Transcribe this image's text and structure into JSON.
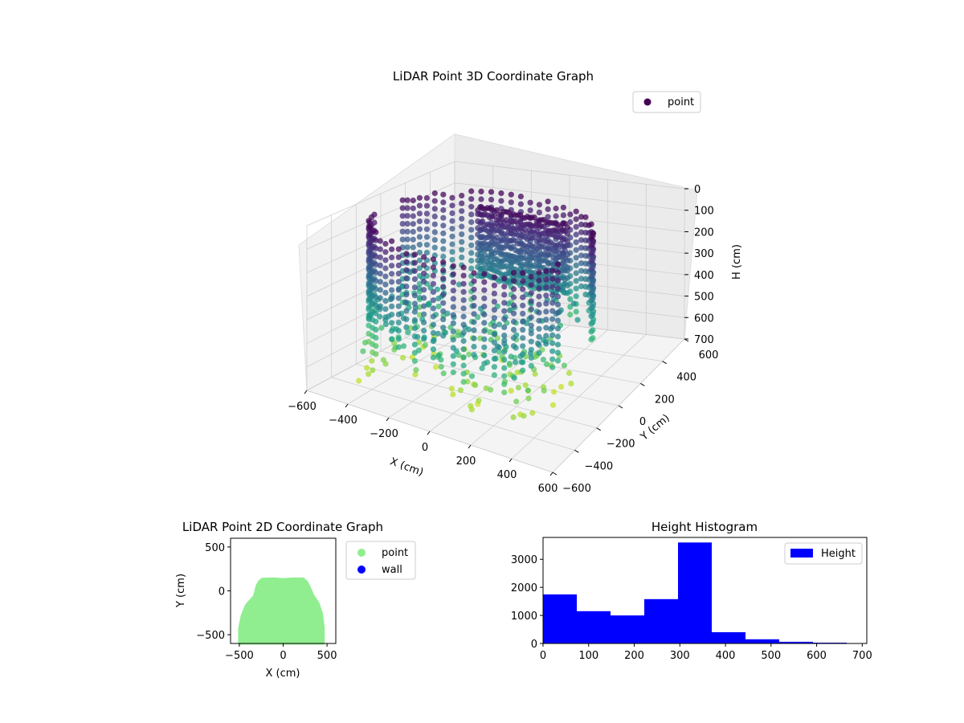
{
  "chart_data": [
    {
      "type": "scatter3d",
      "title": "LiDAR Point 3D Coordinate Graph",
      "xlabel": "X (cm)",
      "ylabel": "Y (cm)",
      "zlabel": "H (cm)",
      "xlim": [
        -600,
        600
      ],
      "ylim": [
        -600,
        600
      ],
      "zlim": [
        0,
        700
      ],
      "z_axis_inverted": true,
      "xticks": [
        -600,
        -400,
        -200,
        0,
        200,
        400,
        600
      ],
      "yticks": [
        -600,
        -400,
        -200,
        0,
        200,
        400,
        600
      ],
      "zticks": [
        0,
        100,
        200,
        300,
        400,
        500,
        600,
        700
      ],
      "xtick_labels": [
        "−600",
        "−400",
        "−200",
        "0",
        "200",
        "400",
        "600"
      ],
      "ytick_labels": [
        "−600",
        "−400",
        "−200",
        "0",
        "200",
        "400",
        "600"
      ],
      "ztick_labels": [
        "0",
        "100",
        "200",
        "300",
        "400",
        "500",
        "600",
        "700"
      ],
      "colormap": "viridis",
      "grid": true,
      "legend": {
        "placement": "top-right",
        "entries": [
          {
            "label": "point",
            "color": "#440154"
          }
        ]
      },
      "points_description_values": {
        "wall_radius_x": [
          -500,
          450
        ],
        "wall_y_range": [
          -550,
          150
        ],
        "height_range": [
          0,
          680
        ]
      }
    },
    {
      "type": "scatter",
      "title": "LiDAR Point 2D Coordinate Graph",
      "xlabel": "X (cm)",
      "ylabel": "Y (cm)",
      "xlim": [
        -600,
        600
      ],
      "ylim": [
        -600,
        600
      ],
      "xticks": [
        -500,
        0,
        500
      ],
      "yticks": [
        -500,
        0,
        500
      ],
      "xtick_labels": [
        "−500",
        "0",
        "500"
      ],
      "ytick_labels": [
        "−500",
        "0",
        "500"
      ],
      "legend": {
        "placement": "outside-right",
        "entries": [
          {
            "label": "point",
            "color": "#90ee90"
          },
          {
            "label": "wall",
            "color": "#0000ff"
          }
        ]
      },
      "series": [
        {
          "name": "point",
          "color": "#90ee90",
          "outline": [
            [
              -500,
              -600
            ],
            [
              -500,
              -430
            ],
            [
              -470,
              -280
            ],
            [
              -420,
              -160
            ],
            [
              -330,
              -60
            ],
            [
              -300,
              60
            ],
            [
              -270,
              110
            ],
            [
              -240,
              135
            ],
            [
              -100,
              140
            ],
            [
              0,
              130
            ],
            [
              120,
              140
            ],
            [
              230,
              138
            ],
            [
              270,
              100
            ],
            [
              300,
              40
            ],
            [
              340,
              -50
            ],
            [
              400,
              -140
            ],
            [
              440,
              -260
            ],
            [
              460,
              -420
            ],
            [
              460,
              -600
            ]
          ]
        }
      ]
    },
    {
      "type": "histogram",
      "title": "Height Histogram",
      "xlim": [
        0,
        710
      ],
      "ylim": [
        0,
        3780
      ],
      "xticks": [
        0,
        100,
        200,
        300,
        400,
        500,
        600,
        700
      ],
      "yticks": [
        0,
        1000,
        2000,
        3000
      ],
      "xtick_labels": [
        "0",
        "100",
        "200",
        "300",
        "400",
        "500",
        "600",
        "700"
      ],
      "ytick_labels": [
        "0",
        "1000",
        "2000",
        "3000"
      ],
      "legend": {
        "placement": "top-right",
        "entries": [
          {
            "label": "Height",
            "color": "#0000ff"
          }
        ]
      },
      "bin_edges": [
        0,
        74,
        148,
        222,
        296,
        370,
        444,
        518,
        592,
        666
      ],
      "values": [
        1750,
        1150,
        1000,
        1580,
        3600,
        400,
        150,
        60,
        30
      ],
      "color": "#0000ff"
    }
  ]
}
